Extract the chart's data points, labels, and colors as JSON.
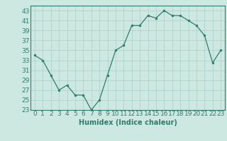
{
  "x": [
    0,
    1,
    2,
    3,
    4,
    5,
    6,
    7,
    8,
    9,
    10,
    11,
    12,
    13,
    14,
    15,
    16,
    17,
    18,
    19,
    20,
    21,
    22,
    23
  ],
  "y": [
    34,
    33,
    30,
    27,
    28,
    26,
    26,
    23,
    25,
    30,
    35,
    36,
    40,
    40,
    42,
    41.5,
    43,
    42,
    42,
    41,
    40,
    38,
    32.5,
    35
  ],
  "line_color": "#2e7d6e",
  "marker_color": "#2e7d6e",
  "bg_color": "#cce8e0",
  "grid_color": "#aacfc8",
  "xlabel": "Humidex (Indice chaleur)",
  "xlim": [
    -0.5,
    23.5
  ],
  "ylim": [
    23,
    44
  ],
  "yticks": [
    23,
    25,
    27,
    29,
    31,
    33,
    35,
    37,
    39,
    41,
    43
  ],
  "xticks": [
    0,
    1,
    2,
    3,
    4,
    5,
    6,
    7,
    8,
    9,
    10,
    11,
    12,
    13,
    14,
    15,
    16,
    17,
    18,
    19,
    20,
    21,
    22,
    23
  ],
  "xlabel_fontsize": 7,
  "tick_fontsize": 6.5
}
